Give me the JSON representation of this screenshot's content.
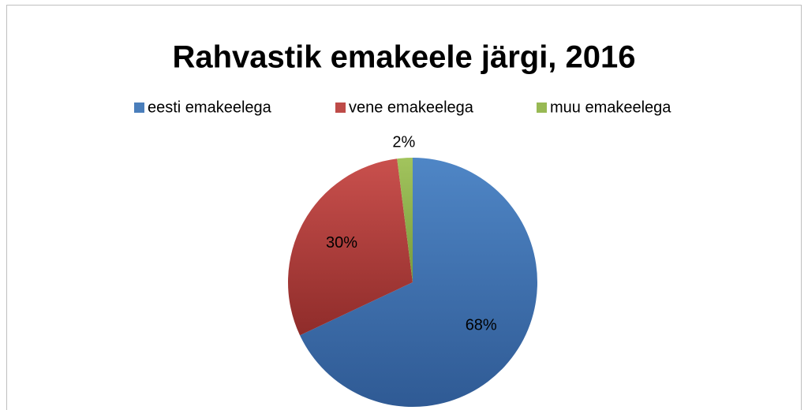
{
  "chart_data": {
    "type": "pie",
    "title": "Rahvastik emakeele järgi, 2016",
    "categories": [
      "eesti emakeelega",
      "vene emakeelega",
      "muu emakeelega"
    ],
    "values": [
      68,
      30,
      2
    ],
    "value_labels": [
      "68%",
      "30%",
      "2%"
    ],
    "colors": [
      "#4a7ebb",
      "#be4b48",
      "#98b954"
    ],
    "legend": "top"
  }
}
